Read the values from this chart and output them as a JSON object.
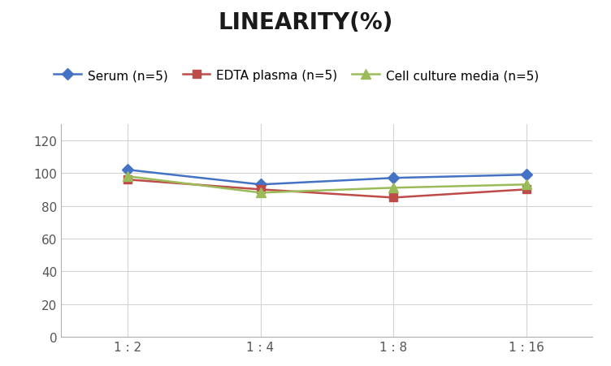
{
  "title": "LINEARITY(%)",
  "x_positions": [
    0,
    1,
    2,
    3
  ],
  "x_labels": [
    "1 : 2",
    "1 : 4",
    "1 : 8",
    "1 : 16"
  ],
  "series": [
    {
      "label": "Serum (n=5)",
      "values": [
        102,
        93,
        97,
        99
      ],
      "color": "#4472C4",
      "marker": "D",
      "markersize": 7,
      "linewidth": 1.8
    },
    {
      "label": "EDTA plasma (n=5)",
      "values": [
        96,
        90,
        85,
        90
      ],
      "color": "#BE4B48",
      "marker": "s",
      "markersize": 7,
      "linewidth": 1.8
    },
    {
      "label": "Cell culture media (n=5)",
      "values": [
        98,
        88,
        91,
        93
      ],
      "color": "#9BBB59",
      "marker": "^",
      "markersize": 8,
      "linewidth": 1.8
    }
  ],
  "ylim": [
    0,
    130
  ],
  "yticks": [
    0,
    20,
    40,
    60,
    80,
    100,
    120
  ],
  "background_color": "#ffffff",
  "grid_color": "#d3d3d3",
  "title_fontsize": 20,
  "legend_fontsize": 11,
  "tick_fontsize": 11
}
